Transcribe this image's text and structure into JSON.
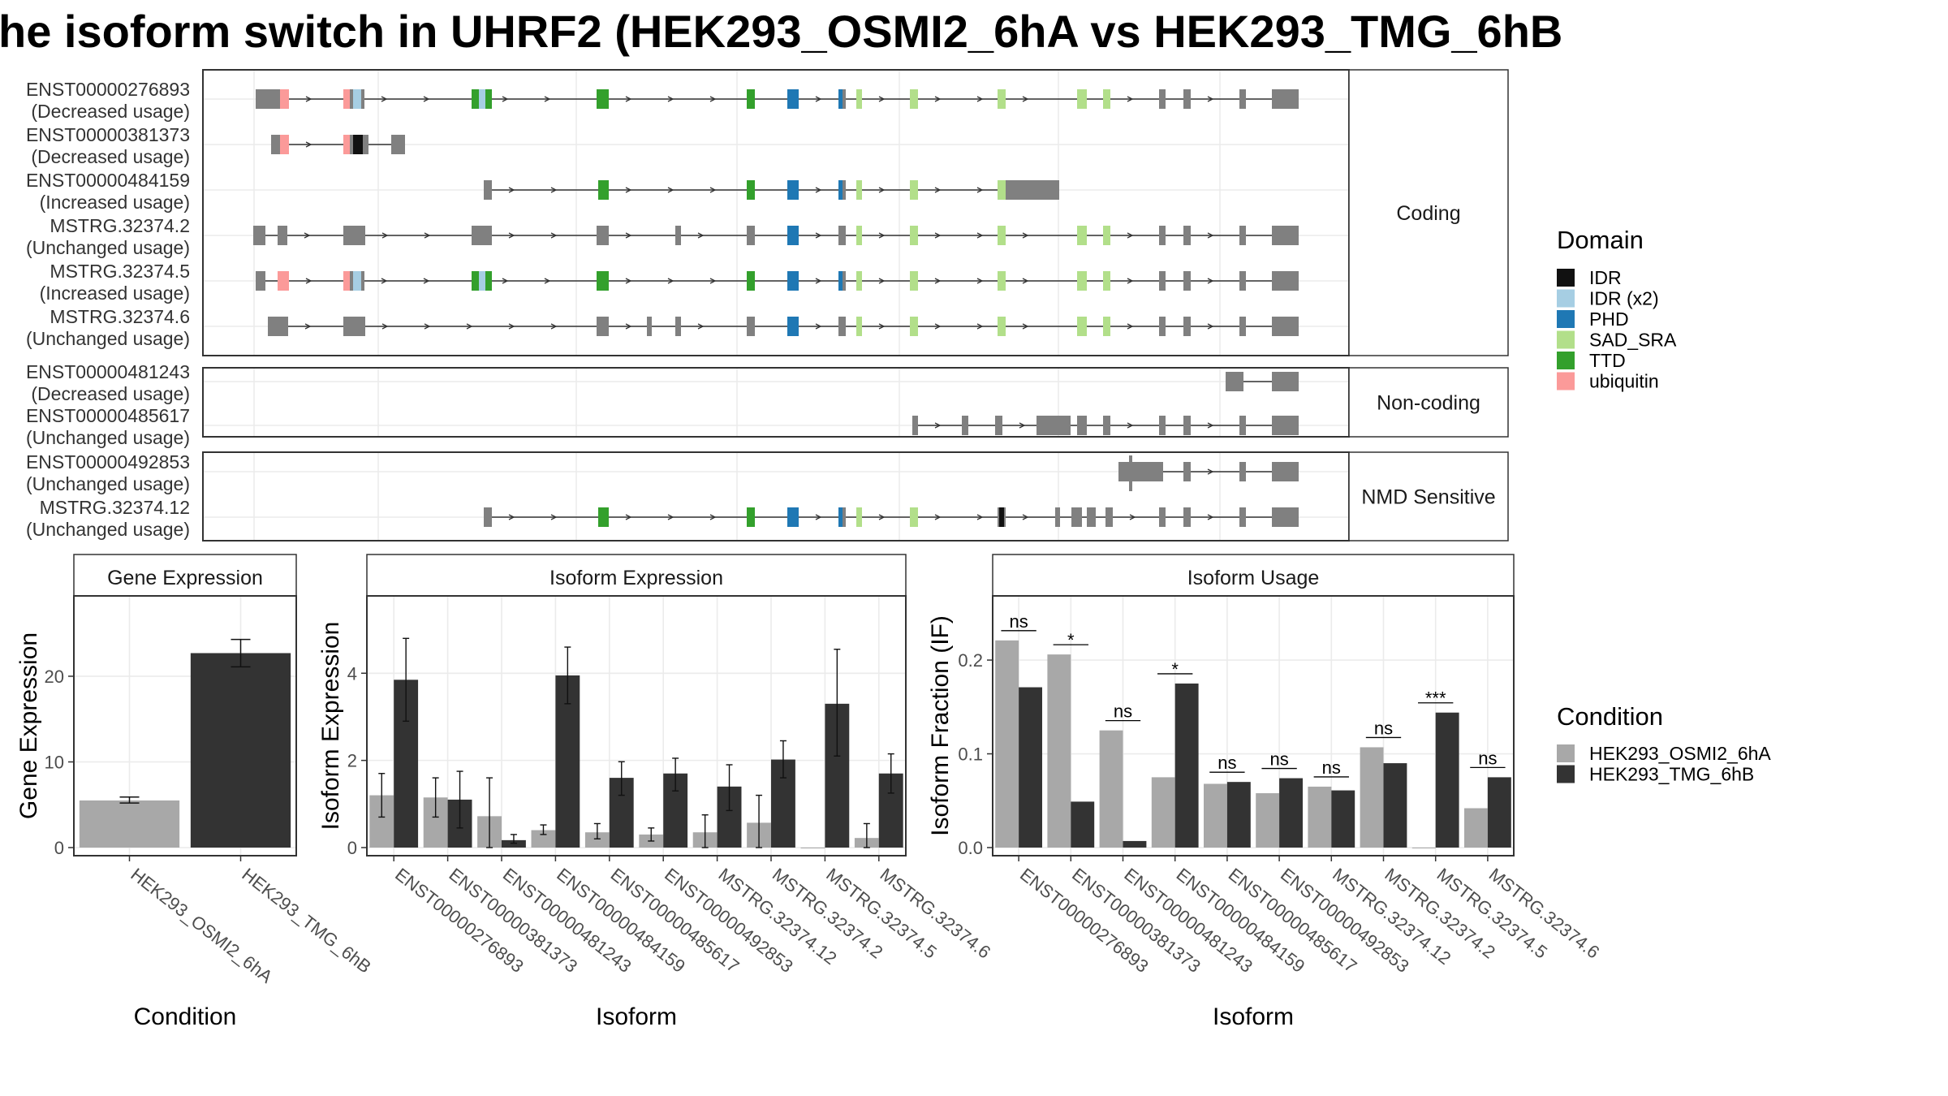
{
  "title": "he isoform switch in UHRF2 (HEK293_OSMI2_6hA vs HEK293_TMG_6hB",
  "colors": {
    "IDR": "#111111",
    "IDR (x2)": "#a6cee3",
    "PHD": "#1f78b4",
    "SAD_SRA": "#b2df8a",
    "TTD": "#33a02c",
    "ubiquitin": "#fb9a99",
    "exon": "#808080",
    "HEK293_OSMI2_6hA": "#a8a8a8",
    "HEK293_TMG_6hB": "#333333"
  },
  "transcript_panels": [
    {
      "category": "Coding",
      "transcripts": [
        {
          "id": "ENST00000276893",
          "usage": "(Decreased usage)"
        },
        {
          "id": "ENST00000381373",
          "usage": "(Decreased usage)"
        },
        {
          "id": "ENST00000484159",
          "usage": "(Increased usage)"
        },
        {
          "id": "MSTRG.32374.2",
          "usage": "(Unchanged usage)"
        },
        {
          "id": "MSTRG.32374.5",
          "usage": "(Increased usage)"
        },
        {
          "id": "MSTRG.32374.6",
          "usage": "(Unchanged usage)"
        }
      ]
    },
    {
      "category": "Non-coding",
      "transcripts": [
        {
          "id": "ENST00000481243",
          "usage": "(Decreased usage)"
        },
        {
          "id": "ENST00000485617",
          "usage": "(Unchanged usage)"
        }
      ]
    },
    {
      "category": "NMD Sensitive",
      "transcripts": [
        {
          "id": "ENST00000492853",
          "usage": "(Unchanged usage)"
        },
        {
          "id": "MSTRG.32374.12",
          "usage": "(Unchanged usage)"
        }
      ]
    }
  ],
  "legends": {
    "domain": {
      "title": "Domain",
      "items": [
        "IDR",
        "IDR (x2)",
        "PHD",
        "SAD_SRA",
        "TTD",
        "ubiquitin"
      ]
    },
    "condition": {
      "title": "Condition",
      "items": [
        "HEK293_OSMI2_6hA",
        "HEK293_TMG_6hB"
      ]
    }
  },
  "chart_data": [
    {
      "type": "bar",
      "title": "Gene Expression",
      "xlabel": "Condition",
      "ylabel": "Gene Expression",
      "categories": [
        "HEK293_OSMI2_6hA",
        "HEK293_TMG_6hB"
      ],
      "values": [
        5.5,
        22.7
      ],
      "errors": [
        [
          5.2,
          5.9
        ],
        [
          21.1,
          24.3
        ]
      ],
      "ylim": [
        0,
        29
      ],
      "yticks": [
        0,
        10,
        20
      ]
    },
    {
      "type": "bar",
      "title": "Isoform Expression",
      "xlabel": "Isoform",
      "ylabel": "Isoform Expression",
      "categories": [
        "ENST00000276893",
        "ENST00000381373",
        "ENST00000481243",
        "ENST00000484159",
        "ENST00000485617",
        "ENST00000492853",
        "MSTRG.32374.12",
        "MSTRG.32374.2",
        "MSTRG.32374.5",
        "MSTRG.32374.6"
      ],
      "series": [
        {
          "name": "HEK293_OSMI2_6hA",
          "values": [
            1.2,
            1.15,
            0.72,
            0.4,
            0.35,
            0.3,
            0.35,
            0.57,
            0.0,
            0.22
          ],
          "errors": [
            [
              0.7,
              1.7
            ],
            [
              0.7,
              1.6
            ],
            [
              0.0,
              1.6
            ],
            [
              0.3,
              0.52
            ],
            [
              0.2,
              0.55
            ],
            [
              0.15,
              0.45
            ],
            [
              0.0,
              0.75
            ],
            [
              0.0,
              1.2
            ],
            [
              0.0,
              0.0
            ],
            [
              0.0,
              0.55
            ]
          ]
        },
        {
          "name": "HEK293_TMG_6hB",
          "values": [
            3.85,
            1.1,
            0.17,
            3.95,
            1.6,
            1.7,
            1.4,
            2.02,
            3.3,
            1.7
          ],
          "errors": [
            [
              2.9,
              4.8
            ],
            [
              0.45,
              1.75
            ],
            [
              0.1,
              0.3
            ],
            [
              3.3,
              4.6
            ],
            [
              1.2,
              1.97
            ],
            [
              1.3,
              2.05
            ],
            [
              0.85,
              1.9
            ],
            [
              1.6,
              2.45
            ],
            [
              2.1,
              4.55
            ],
            [
              1.25,
              2.15
            ]
          ]
        }
      ],
      "ylim": [
        0,
        5.7
      ],
      "yticks": [
        0,
        2,
        4
      ]
    },
    {
      "type": "bar",
      "title": "Isoform Usage",
      "xlabel": "Isoform",
      "ylabel": "Isoform Fraction (IF)",
      "categories": [
        "ENST00000276893",
        "ENST00000381373",
        "ENST00000481243",
        "ENST00000484159",
        "ENST00000485617",
        "ENST00000492853",
        "MSTRG.32374.12",
        "MSTRG.32374.2",
        "MSTRG.32374.5",
        "MSTRG.32374.6"
      ],
      "series": [
        {
          "name": "HEK293_OSMI2_6hA",
          "values": [
            0.221,
            0.206,
            0.125,
            0.075,
            0.068,
            0.058,
            0.065,
            0.107,
            0.0,
            0.042
          ]
        },
        {
          "name": "HEK293_TMG_6hB",
          "values": [
            0.171,
            0.049,
            0.007,
            0.175,
            0.07,
            0.074,
            0.061,
            0.09,
            0.144,
            0.075
          ]
        }
      ],
      "significance": [
        "ns",
        "*",
        "ns",
        "*",
        "ns",
        "ns",
        "ns",
        "ns",
        "***",
        "ns"
      ],
      "ylim": [
        0,
        0.265
      ],
      "yticks": [
        0.0,
        0.1,
        0.2
      ],
      "ytick_labels": [
        "0.0",
        "0.1",
        "0.2"
      ]
    }
  ]
}
